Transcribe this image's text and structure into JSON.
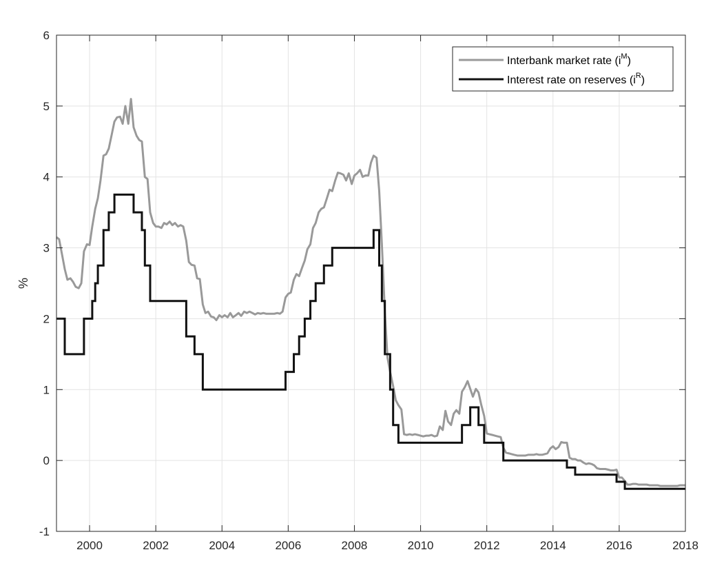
{
  "chart_data": {
    "type": "line",
    "title": "",
    "xlabel": "",
    "ylabel": "%",
    "xlim": [
      1999,
      2018
    ],
    "ylim": [
      -1,
      6
    ],
    "grid": true,
    "legend_position": "top-right",
    "x_ticks": [
      {
        "value": 2000,
        "label": "2000"
      },
      {
        "value": 2002,
        "label": "2002"
      },
      {
        "value": 2004,
        "label": "2004"
      },
      {
        "value": 2006,
        "label": "2006"
      },
      {
        "value": 2008,
        "label": "2008"
      },
      {
        "value": 2010,
        "label": "2010"
      },
      {
        "value": 2012,
        "label": "2012"
      },
      {
        "value": 2014,
        "label": "2014"
      },
      {
        "value": 2016,
        "label": "2016"
      },
      {
        "value": 2018,
        "label": "2018"
      }
    ],
    "y_ticks": [
      {
        "value": -1,
        "label": "-1"
      },
      {
        "value": 0,
        "label": "0"
      },
      {
        "value": 1,
        "label": "1"
      },
      {
        "value": 2,
        "label": "2"
      },
      {
        "value": 3,
        "label": "3"
      },
      {
        "value": 4,
        "label": "4"
      },
      {
        "value": 5,
        "label": "5"
      },
      {
        "value": 6,
        "label": "6"
      }
    ],
    "series": [
      {
        "name": "Interbank market rate (i",
        "name_sup": "M",
        "name_end": ")",
        "color": "#999999",
        "points": [
          [
            1999.0,
            3.15
          ],
          [
            1999.08,
            3.12
          ],
          [
            1999.17,
            2.9
          ],
          [
            1999.25,
            2.7
          ],
          [
            1999.33,
            2.55
          ],
          [
            1999.42,
            2.57
          ],
          [
            1999.5,
            2.52
          ],
          [
            1999.58,
            2.45
          ],
          [
            1999.67,
            2.43
          ],
          [
            1999.75,
            2.5
          ],
          [
            1999.83,
            2.95
          ],
          [
            1999.92,
            3.05
          ],
          [
            2000.0,
            3.04
          ],
          [
            2000.08,
            3.3
          ],
          [
            2000.17,
            3.55
          ],
          [
            2000.25,
            3.7
          ],
          [
            2000.33,
            3.95
          ],
          [
            2000.42,
            4.3
          ],
          [
            2000.5,
            4.32
          ],
          [
            2000.58,
            4.4
          ],
          [
            2000.67,
            4.6
          ],
          [
            2000.75,
            4.78
          ],
          [
            2000.83,
            4.84
          ],
          [
            2000.92,
            4.85
          ],
          [
            2001.0,
            4.75
          ],
          [
            2001.08,
            5.0
          ],
          [
            2001.17,
            4.75
          ],
          [
            2001.25,
            5.1
          ],
          [
            2001.33,
            4.7
          ],
          [
            2001.42,
            4.58
          ],
          [
            2001.5,
            4.52
          ],
          [
            2001.58,
            4.5
          ],
          [
            2001.67,
            4.0
          ],
          [
            2001.75,
            3.97
          ],
          [
            2001.83,
            3.5
          ],
          [
            2001.92,
            3.35
          ],
          [
            2002.0,
            3.3
          ],
          [
            2002.08,
            3.3
          ],
          [
            2002.17,
            3.28
          ],
          [
            2002.25,
            3.35
          ],
          [
            2002.33,
            3.33
          ],
          [
            2002.42,
            3.37
          ],
          [
            2002.5,
            3.32
          ],
          [
            2002.58,
            3.35
          ],
          [
            2002.67,
            3.3
          ],
          [
            2002.75,
            3.32
          ],
          [
            2002.83,
            3.3
          ],
          [
            2002.92,
            3.1
          ],
          [
            2003.0,
            2.8
          ],
          [
            2003.08,
            2.76
          ],
          [
            2003.17,
            2.75
          ],
          [
            2003.25,
            2.57
          ],
          [
            2003.33,
            2.56
          ],
          [
            2003.42,
            2.2
          ],
          [
            2003.5,
            2.08
          ],
          [
            2003.58,
            2.1
          ],
          [
            2003.67,
            2.03
          ],
          [
            2003.75,
            2.02
          ],
          [
            2003.83,
            1.98
          ],
          [
            2003.92,
            2.05
          ],
          [
            2004.0,
            2.02
          ],
          [
            2004.08,
            2.05
          ],
          [
            2004.17,
            2.02
          ],
          [
            2004.25,
            2.08
          ],
          [
            2004.33,
            2.02
          ],
          [
            2004.42,
            2.05
          ],
          [
            2004.5,
            2.08
          ],
          [
            2004.58,
            2.04
          ],
          [
            2004.67,
            2.1
          ],
          [
            2004.75,
            2.08
          ],
          [
            2004.83,
            2.1
          ],
          [
            2004.92,
            2.08
          ],
          [
            2005.0,
            2.06
          ],
          [
            2005.08,
            2.08
          ],
          [
            2005.17,
            2.07
          ],
          [
            2005.25,
            2.08
          ],
          [
            2005.33,
            2.07
          ],
          [
            2005.42,
            2.07
          ],
          [
            2005.5,
            2.07
          ],
          [
            2005.58,
            2.07
          ],
          [
            2005.67,
            2.08
          ],
          [
            2005.75,
            2.07
          ],
          [
            2005.83,
            2.1
          ],
          [
            2005.92,
            2.3
          ],
          [
            2006.0,
            2.35
          ],
          [
            2006.08,
            2.37
          ],
          [
            2006.17,
            2.55
          ],
          [
            2006.25,
            2.63
          ],
          [
            2006.33,
            2.6
          ],
          [
            2006.42,
            2.72
          ],
          [
            2006.5,
            2.82
          ],
          [
            2006.58,
            2.98
          ],
          [
            2006.67,
            3.05
          ],
          [
            2006.75,
            3.28
          ],
          [
            2006.83,
            3.35
          ],
          [
            2006.92,
            3.5
          ],
          [
            2007.0,
            3.55
          ],
          [
            2007.08,
            3.57
          ],
          [
            2007.17,
            3.7
          ],
          [
            2007.25,
            3.82
          ],
          [
            2007.33,
            3.8
          ],
          [
            2007.42,
            3.95
          ],
          [
            2007.5,
            4.06
          ],
          [
            2007.58,
            4.05
          ],
          [
            2007.67,
            4.03
          ],
          [
            2007.75,
            3.95
          ],
          [
            2007.83,
            4.05
          ],
          [
            2007.92,
            3.9
          ],
          [
            2008.0,
            4.02
          ],
          [
            2008.08,
            4.05
          ],
          [
            2008.17,
            4.1
          ],
          [
            2008.25,
            4.0
          ],
          [
            2008.33,
            4.02
          ],
          [
            2008.42,
            4.02
          ],
          [
            2008.5,
            4.2
          ],
          [
            2008.58,
            4.3
          ],
          [
            2008.67,
            4.27
          ],
          [
            2008.75,
            3.8
          ],
          [
            2008.83,
            3.05
          ],
          [
            2008.92,
            2.1
          ],
          [
            2009.0,
            1.45
          ],
          [
            2009.08,
            1.25
          ],
          [
            2009.17,
            1.05
          ],
          [
            2009.25,
            0.85
          ],
          [
            2009.33,
            0.78
          ],
          [
            2009.42,
            0.72
          ],
          [
            2009.5,
            0.37
          ],
          [
            2009.58,
            0.36
          ],
          [
            2009.67,
            0.37
          ],
          [
            2009.75,
            0.36
          ],
          [
            2009.83,
            0.37
          ],
          [
            2009.92,
            0.36
          ],
          [
            2010.0,
            0.35
          ],
          [
            2010.08,
            0.34
          ],
          [
            2010.17,
            0.35
          ],
          [
            2010.25,
            0.35
          ],
          [
            2010.33,
            0.36
          ],
          [
            2010.42,
            0.34
          ],
          [
            2010.5,
            0.35
          ],
          [
            2010.58,
            0.48
          ],
          [
            2010.67,
            0.43
          ],
          [
            2010.75,
            0.7
          ],
          [
            2010.83,
            0.55
          ],
          [
            2010.92,
            0.5
          ],
          [
            2011.0,
            0.66
          ],
          [
            2011.08,
            0.71
          ],
          [
            2011.17,
            0.66
          ],
          [
            2011.25,
            0.97
          ],
          [
            2011.33,
            1.03
          ],
          [
            2011.42,
            1.12
          ],
          [
            2011.5,
            1.01
          ],
          [
            2011.58,
            0.9
          ],
          [
            2011.67,
            1.01
          ],
          [
            2011.75,
            0.96
          ],
          [
            2011.83,
            0.79
          ],
          [
            2011.92,
            0.63
          ],
          [
            2012.0,
            0.38
          ],
          [
            2012.08,
            0.37
          ],
          [
            2012.17,
            0.36
          ],
          [
            2012.25,
            0.35
          ],
          [
            2012.33,
            0.34
          ],
          [
            2012.42,
            0.33
          ],
          [
            2012.5,
            0.18
          ],
          [
            2012.58,
            0.11
          ],
          [
            2012.67,
            0.1
          ],
          [
            2012.75,
            0.09
          ],
          [
            2012.83,
            0.08
          ],
          [
            2012.92,
            0.07
          ],
          [
            2013.0,
            0.07
          ],
          [
            2013.08,
            0.07
          ],
          [
            2013.17,
            0.07
          ],
          [
            2013.25,
            0.08
          ],
          [
            2013.33,
            0.08
          ],
          [
            2013.42,
            0.08
          ],
          [
            2013.5,
            0.09
          ],
          [
            2013.58,
            0.08
          ],
          [
            2013.67,
            0.08
          ],
          [
            2013.75,
            0.09
          ],
          [
            2013.83,
            0.1
          ],
          [
            2013.92,
            0.17
          ],
          [
            2014.0,
            0.2
          ],
          [
            2014.08,
            0.16
          ],
          [
            2014.17,
            0.19
          ],
          [
            2014.25,
            0.26
          ],
          [
            2014.33,
            0.25
          ],
          [
            2014.42,
            0.25
          ],
          [
            2014.5,
            0.04
          ],
          [
            2014.58,
            0.02
          ],
          [
            2014.67,
            0.02
          ],
          [
            2014.75,
            0.0
          ],
          [
            2014.83,
            0.0
          ],
          [
            2014.92,
            -0.03
          ],
          [
            2015.0,
            -0.05
          ],
          [
            2015.08,
            -0.04
          ],
          [
            2015.17,
            -0.05
          ],
          [
            2015.25,
            -0.07
          ],
          [
            2015.33,
            -0.11
          ],
          [
            2015.42,
            -0.12
          ],
          [
            2015.5,
            -0.12
          ],
          [
            2015.58,
            -0.12
          ],
          [
            2015.67,
            -0.13
          ],
          [
            2015.75,
            -0.14
          ],
          [
            2015.83,
            -0.14
          ],
          [
            2015.92,
            -0.13
          ],
          [
            2016.0,
            -0.24
          ],
          [
            2016.08,
            -0.24
          ],
          [
            2016.17,
            -0.29
          ],
          [
            2016.25,
            -0.34
          ],
          [
            2016.33,
            -0.34
          ],
          [
            2016.42,
            -0.33
          ],
          [
            2016.5,
            -0.33
          ],
          [
            2016.58,
            -0.34
          ],
          [
            2016.67,
            -0.34
          ],
          [
            2016.75,
            -0.34
          ],
          [
            2016.83,
            -0.34
          ],
          [
            2016.92,
            -0.35
          ],
          [
            2017.0,
            -0.35
          ],
          [
            2017.08,
            -0.35
          ],
          [
            2017.17,
            -0.35
          ],
          [
            2017.25,
            -0.36
          ],
          [
            2017.33,
            -0.36
          ],
          [
            2017.42,
            -0.36
          ],
          [
            2017.5,
            -0.36
          ],
          [
            2017.58,
            -0.36
          ],
          [
            2017.67,
            -0.36
          ],
          [
            2017.75,
            -0.36
          ],
          [
            2017.83,
            -0.35
          ],
          [
            2017.92,
            -0.35
          ],
          [
            2018.0,
            -0.35
          ]
        ]
      },
      {
        "name": "Interest rate on reserves (i",
        "name_sup": "R",
        "name_end": ")",
        "color": "#111111",
        "steps": [
          [
            1999.0,
            2.0
          ],
          [
            1999.25,
            1.5
          ],
          [
            1999.83,
            2.0
          ],
          [
            2000.08,
            2.25
          ],
          [
            2000.17,
            2.5
          ],
          [
            2000.25,
            2.75
          ],
          [
            2000.42,
            3.25
          ],
          [
            2000.58,
            3.5
          ],
          [
            2000.75,
            3.75
          ],
          [
            2001.33,
            3.5
          ],
          [
            2001.58,
            3.25
          ],
          [
            2001.67,
            2.75
          ],
          [
            2001.83,
            2.25
          ],
          [
            2002.92,
            1.75
          ],
          [
            2003.17,
            1.5
          ],
          [
            2003.42,
            1.0
          ],
          [
            2005.92,
            1.25
          ],
          [
            2006.17,
            1.5
          ],
          [
            2006.33,
            1.75
          ],
          [
            2006.5,
            2.0
          ],
          [
            2006.67,
            2.25
          ],
          [
            2006.83,
            2.5
          ],
          [
            2007.08,
            2.75
          ],
          [
            2007.33,
            3.0
          ],
          [
            2008.58,
            3.25
          ],
          [
            2008.75,
            2.75
          ],
          [
            2008.83,
            2.25
          ],
          [
            2008.92,
            1.5
          ],
          [
            2009.08,
            1.0
          ],
          [
            2009.17,
            0.5
          ],
          [
            2009.33,
            0.25
          ],
          [
            2011.25,
            0.5
          ],
          [
            2011.5,
            0.75
          ],
          [
            2011.75,
            0.5
          ],
          [
            2011.92,
            0.25
          ],
          [
            2012.5,
            0.0
          ],
          [
            2014.42,
            -0.1
          ],
          [
            2014.67,
            -0.2
          ],
          [
            2015.92,
            -0.3
          ],
          [
            2016.17,
            -0.4
          ],
          [
            2018.0,
            -0.4
          ]
        ]
      }
    ]
  }
}
